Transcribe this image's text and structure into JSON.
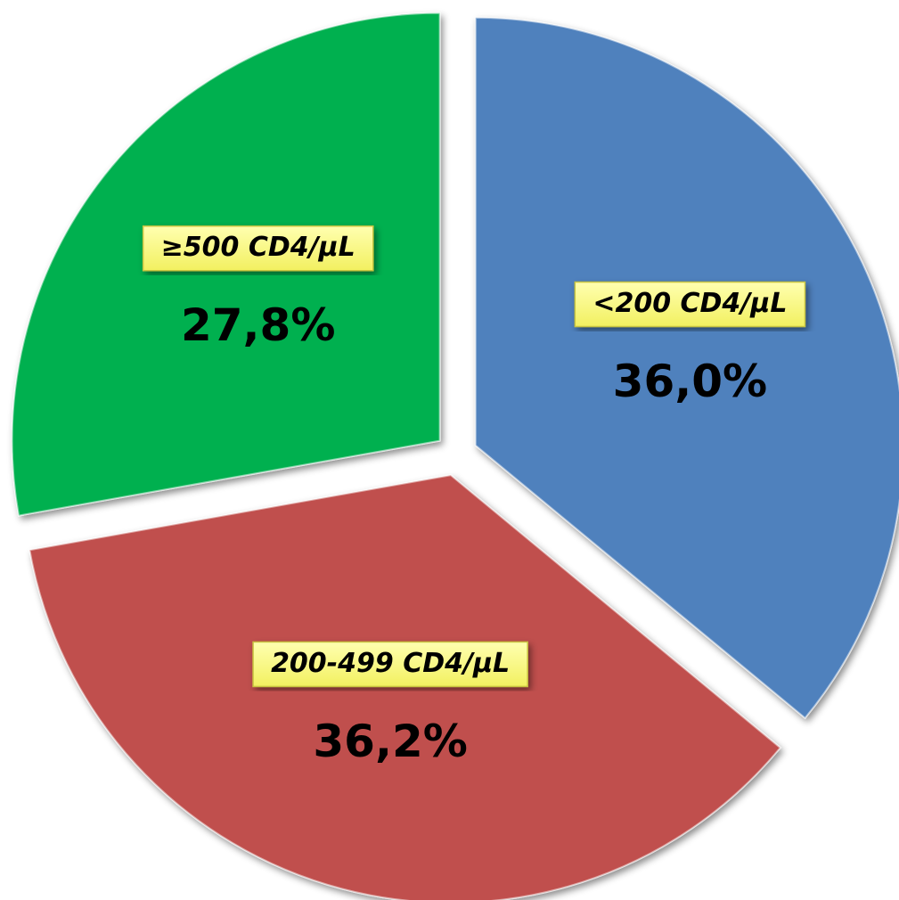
{
  "chart_data": {
    "type": "pie",
    "categories": [
      "<200  CD4/µL",
      "200-499 CD4/µL",
      "≥500 CD4/µL"
    ],
    "values": [
      36.0,
      36.2,
      27.8
    ],
    "value_labels": [
      "36,0%",
      "36,2%",
      "27,8%"
    ],
    "colors": [
      "#4f81bd",
      "#c0504d",
      "#00b050"
    ]
  }
}
